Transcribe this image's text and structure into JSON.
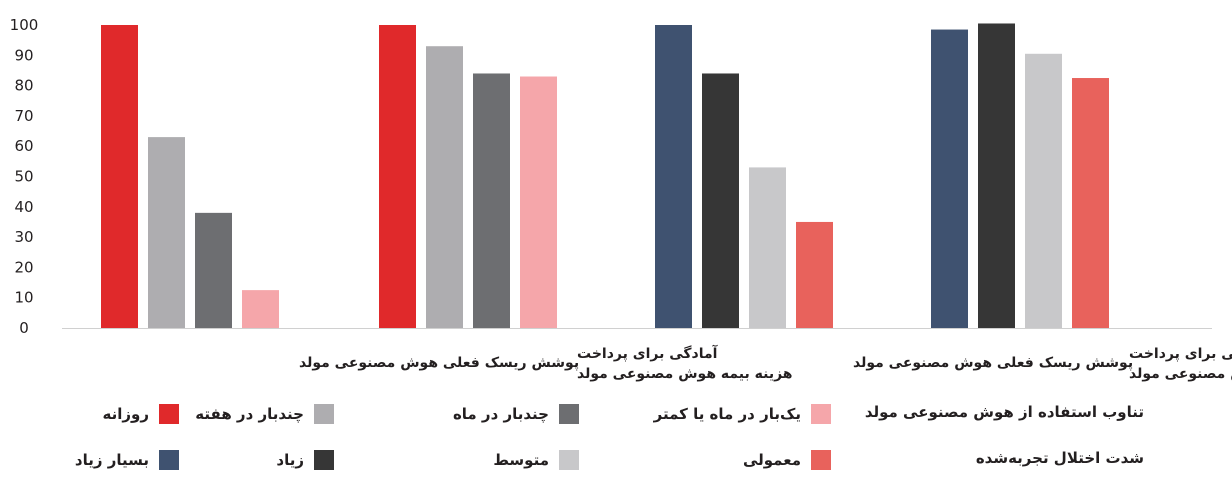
{
  "chart_data": {
    "type": "bar",
    "ylim": [
      0,
      100
    ],
    "yticks": [
      0,
      10,
      20,
      30,
      40,
      50,
      60,
      70,
      80,
      90,
      100
    ],
    "grid": false,
    "groups": [
      {
        "label_lines": [
          "پوشش ریسک فعلی هوش مصنوعی مولد"
        ],
        "legend": "frequency",
        "bars": [
          {
            "series": "روزانه",
            "value": 100,
            "color": "#e0292b"
          },
          {
            "series": "چندبار در هفته",
            "value": 63,
            "color": "#aeadb0"
          },
          {
            "series": "چندبار در ماه",
            "value": 38,
            "color": "#6d6e71"
          },
          {
            "series": "یک‌بار در ماه یا کمتر",
            "value": 12.5,
            "color": "#f5a6aa"
          }
        ]
      },
      {
        "label_lines": [
          "آمادگی برای پرداخت",
          "هزینه بیمه هوش مصنوعی مولد"
        ],
        "legend": "frequency",
        "bars": [
          {
            "series": "روزانه",
            "value": 100,
            "color": "#e0292b"
          },
          {
            "series": "چندبار در هفته",
            "value": 93,
            "color": "#aeadb0"
          },
          {
            "series": "چندبار در ماه",
            "value": 84,
            "color": "#6d6e71"
          },
          {
            "series": "یک‌بار در ماه یا کمتر",
            "value": 83,
            "color": "#f5a6aa"
          }
        ]
      },
      {
        "label_lines": [
          "پوشش ریسک فعلی هوش مصنوعی مولد"
        ],
        "legend": "severity",
        "bars": [
          {
            "series": "بسیار زیاد",
            "value": 100,
            "color": "#3f5270"
          },
          {
            "series": "زیاد",
            "value": 84,
            "color": "#363636"
          },
          {
            "series": "متوسط",
            "value": 53,
            "color": "#c8c8ca"
          },
          {
            "series": "معمولی",
            "value": 35,
            "color": "#e8625c"
          }
        ]
      },
      {
        "label_lines": [
          "آمادگی برای پرداخت",
          "هزینه بیمه هوش مصنوعی مولد"
        ],
        "legend": "severity",
        "bars": [
          {
            "series": "بسیار زیاد",
            "value": 98.5,
            "color": "#3f5270"
          },
          {
            "series": "زیاد",
            "value": 100.5,
            "color": "#363636"
          },
          {
            "series": "متوسط",
            "value": 90.5,
            "color": "#c8c8ca"
          },
          {
            "series": "معمولی",
            "value": 82.5,
            "color": "#e8625c"
          }
        ]
      }
    ]
  },
  "legend": {
    "frequency": {
      "title": "تناوب استفاده از هوش مصنوعی مولد",
      "items": [
        {
          "label": "یک‌بار در ماه یا کمتر",
          "color": "#f5a6aa"
        },
        {
          "label": "چندبار در ماه",
          "color": "#6d6e71"
        },
        {
          "label": "چندبار در هفته",
          "color": "#aeadb0"
        },
        {
          "label": "روزانه",
          "color": "#e0292b"
        }
      ]
    },
    "severity": {
      "title": "شدت اختلال تجربه‌شده",
      "items": [
        {
          "label": "معمولی",
          "color": "#e8625c"
        },
        {
          "label": "متوسط",
          "color": "#c8c8ca"
        },
        {
          "label": "زیاد",
          "color": "#363636"
        },
        {
          "label": "بسیار زیاد",
          "color": "#3f5270"
        }
      ]
    }
  }
}
